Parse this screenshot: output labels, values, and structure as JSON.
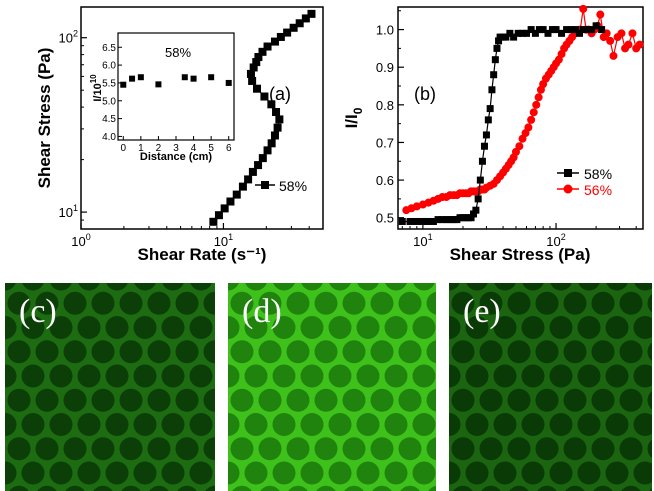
{
  "colors": {
    "black_series": "#000000",
    "red_series": "#ff0000",
    "micro_bg_c": "#1d6c11",
    "micro_cell_c": "#0b3f07",
    "micro_bg_d": "#3fc11b",
    "micro_cell_d": "#20830e",
    "micro_bg_e": "#1b6510",
    "micro_cell_e": "#0a3a06"
  },
  "chart_data": [
    {
      "panel": "(a)",
      "type": "scatter",
      "xlabel": "Shear Rate (s⁻¹)",
      "ylabel": "Shear Stress (Pa)",
      "x_scale": "log",
      "y_scale": "log",
      "xlim": [
        1,
        50
      ],
      "ylim": [
        8,
        150
      ],
      "x_ticks": [
        {
          "value": 1,
          "label": "10",
          "exp": "0"
        },
        {
          "value": 10,
          "label": "10",
          "exp": "1"
        }
      ],
      "y_ticks": [
        {
          "value": 10,
          "label": "10",
          "exp": "1"
        },
        {
          "value": 100,
          "label": "10",
          "exp": "2"
        }
      ],
      "legend": {
        "placement": "lower-right",
        "entries": [
          "58%"
        ]
      },
      "series": [
        {
          "name": "58%",
          "color": "#000000",
          "marker": "square",
          "points": [
            [
              8.5,
              8.8
            ],
            [
              9.3,
              9.6
            ],
            [
              10.2,
              10.5
            ],
            [
              11.2,
              11.5
            ],
            [
              12.4,
              12.6
            ],
            [
              13.7,
              14.0
            ],
            [
              14.9,
              15.4
            ],
            [
              16.1,
              17.0
            ],
            [
              17.5,
              18.6
            ],
            [
              18.9,
              20.4
            ],
            [
              20.4,
              22.6
            ],
            [
              21.8,
              24.8
            ],
            [
              23.0,
              27.5
            ],
            [
              24.0,
              30.5
            ],
            [
              24.7,
              34.0
            ],
            [
              23.4,
              37.5
            ],
            [
              21.7,
              41.5
            ],
            [
              19.4,
              46.0
            ],
            [
              17.2,
              51.0
            ],
            [
              15.9,
              56.5
            ],
            [
              15.6,
              62.0
            ],
            [
              16.3,
              67.5
            ],
            [
              17.0,
              72.5
            ],
            [
              17.6,
              77.5
            ],
            [
              18.8,
              83.0
            ],
            [
              20.4,
              89.0
            ],
            [
              23.0,
              95.0
            ],
            [
              25.3,
              101.0
            ],
            [
              28.0,
              107.0
            ],
            [
              31.1,
              114.0
            ],
            [
              34.3,
              121.0
            ],
            [
              37.9,
              129.0
            ],
            [
              41.5,
              137.0
            ]
          ]
        }
      ],
      "inset": {
        "type": "scatter",
        "annotation": "58%",
        "xlabel": "Distance (cm)",
        "ylabel": "I/10",
        "ylabel_exp": "10",
        "xlim": [
          -0.3,
          6.3
        ],
        "ylim": [
          3.9,
          6.9
        ],
        "x_ticks": [
          0,
          1,
          2,
          3,
          4,
          5,
          6
        ],
        "y_ticks": [
          4.0,
          4.5,
          5.0,
          5.5,
          6.0,
          6.5
        ],
        "y_tick_labels": [
          "4.0",
          "4.5",
          "5.0",
          "5.5",
          "6.0",
          "6.5"
        ],
        "points": [
          [
            0,
            5.45
          ],
          [
            0.5,
            5.62
          ],
          [
            1,
            5.66
          ],
          [
            2,
            5.46
          ],
          [
            3.5,
            5.66
          ],
          [
            4,
            5.62
          ],
          [
            5,
            5.66
          ],
          [
            6,
            5.5
          ]
        ]
      }
    },
    {
      "panel": "(b)",
      "type": "line",
      "xlabel": "Shear Stress (Pa)",
      "ylabel": "I/I",
      "ylabel_sub": "0",
      "x_scale": "log",
      "y_scale": "linear",
      "xlim": [
        6.5,
        450
      ],
      "ylim": [
        0.47,
        1.06
      ],
      "x_ticks": [
        {
          "value": 10,
          "label": "10",
          "exp": "1"
        },
        {
          "value": 100,
          "label": "10",
          "exp": "2"
        }
      ],
      "y_ticks": [
        0.5,
        0.6,
        0.7,
        0.8,
        0.9,
        1.0
      ],
      "y_tick_labels": [
        "0.5",
        "0.6",
        "0.7",
        "0.8",
        "0.9",
        "1.0"
      ],
      "legend": {
        "placement": "lower-right",
        "entries": [
          "58%",
          "56%"
        ]
      },
      "series": [
        {
          "name": "58%",
          "color": "#000000",
          "marker": "square",
          "points": [
            [
              7.0,
              0.49
            ],
            [
              8.0,
              0.49
            ],
            [
              9.0,
              0.49
            ],
            [
              10.0,
              0.49
            ],
            [
              11.0,
              0.49
            ],
            [
              12.0,
              0.49
            ],
            [
              13.0,
              0.495
            ],
            [
              14.0,
              0.495
            ],
            [
              15.0,
              0.495
            ],
            [
              16.0,
              0.495
            ],
            [
              17.0,
              0.495
            ],
            [
              18.0,
              0.495
            ],
            [
              19.0,
              0.5
            ],
            [
              20.0,
              0.5
            ],
            [
              21.0,
              0.5
            ],
            [
              22.0,
              0.5
            ],
            [
              23.0,
              0.5
            ],
            [
              24.0,
              0.51
            ],
            [
              25.0,
              0.52
            ],
            [
              26.0,
              0.55
            ],
            [
              27.0,
              0.6
            ],
            [
              28.0,
              0.65
            ],
            [
              29.0,
              0.69
            ],
            [
              30.0,
              0.72
            ],
            [
              31.0,
              0.76
            ],
            [
              32.0,
              0.79
            ],
            [
              33.0,
              0.84
            ],
            [
              34.0,
              0.88
            ],
            [
              35.0,
              0.92
            ],
            [
              36.0,
              0.95
            ],
            [
              37.0,
              0.97
            ],
            [
              38.0,
              0.98
            ],
            [
              40.0,
              0.98
            ],
            [
              42.0,
              0.98
            ],
            [
              45.0,
              0.99
            ],
            [
              48.0,
              0.98
            ],
            [
              52.0,
              0.99
            ],
            [
              56.0,
              0.99
            ],
            [
              60.0,
              0.99
            ],
            [
              65.0,
              1.0
            ],
            [
              70.0,
              0.99
            ],
            [
              75.0,
              1.0
            ],
            [
              80.0,
              1.0
            ],
            [
              87.0,
              0.99
            ],
            [
              94.0,
              1.0
            ],
            [
              100.0,
              1.0
            ],
            [
              110.0,
              0.99
            ],
            [
              120.0,
              1.0
            ],
            [
              130.0,
              1.0
            ],
            [
              140.0,
              1.0
            ],
            [
              150.0,
              0.99
            ],
            [
              160.0,
              1.0
            ],
            [
              170.0,
              1.0
            ],
            [
              185.0,
              1.0
            ],
            [
              200.0,
              1.01
            ],
            [
              220.0,
              1.0
            ]
          ]
        },
        {
          "name": "56%",
          "color": "#ff0000",
          "marker": "circle",
          "points": [
            [
              7.5,
              0.52
            ],
            [
              8.2,
              0.525
            ],
            [
              9.0,
              0.53
            ],
            [
              10.0,
              0.535
            ],
            [
              11.0,
              0.54
            ],
            [
              12.0,
              0.545
            ],
            [
              13.0,
              0.55
            ],
            [
              14.0,
              0.555
            ],
            [
              15.0,
              0.555
            ],
            [
              16.0,
              0.56
            ],
            [
              17.0,
              0.56
            ],
            [
              18.0,
              0.56
            ],
            [
              19.0,
              0.565
            ],
            [
              20.0,
              0.565
            ],
            [
              21.0,
              0.565
            ],
            [
              22.0,
              0.565
            ],
            [
              23.0,
              0.57
            ],
            [
              24.0,
              0.57
            ],
            [
              25.0,
              0.57
            ],
            [
              26.0,
              0.57
            ],
            [
              27.0,
              0.575
            ],
            [
              28.0,
              0.575
            ],
            [
              29.0,
              0.575
            ],
            [
              30.0,
              0.58
            ],
            [
              32.0,
              0.585
            ],
            [
              34.0,
              0.59
            ],
            [
              36.0,
              0.6
            ],
            [
              38.0,
              0.61
            ],
            [
              40.0,
              0.62
            ],
            [
              42.0,
              0.63
            ],
            [
              44.0,
              0.64
            ],
            [
              46.0,
              0.65
            ],
            [
              48.0,
              0.66
            ],
            [
              50.0,
              0.675
            ],
            [
              53.0,
              0.69
            ],
            [
              56.0,
              0.71
            ],
            [
              59.0,
              0.725
            ],
            [
              62.0,
              0.74
            ],
            [
              65.0,
              0.76
            ],
            [
              68.0,
              0.78
            ],
            [
              71.0,
              0.8
            ],
            [
              74.0,
              0.82
            ],
            [
              77.0,
              0.84
            ],
            [
              80.0,
              0.855
            ],
            [
              84.0,
              0.87
            ],
            [
              88.0,
              0.88
            ],
            [
              92.0,
              0.89
            ],
            [
              96.0,
              0.9
            ],
            [
              100.0,
              0.91
            ],
            [
              105.0,
              0.92
            ],
            [
              110.0,
              0.935
            ],
            [
              115.0,
              0.95
            ],
            [
              120.0,
              0.96
            ],
            [
              126.0,
              0.97
            ],
            [
              132.0,
              0.98
            ],
            [
              138.0,
              0.99
            ],
            [
              145.0,
              0.995
            ],
            [
              152.0,
              1.0
            ],
            [
              160.0,
              1.055
            ],
            [
              168.0,
              1.0
            ],
            [
              176.0,
              1.0
            ],
            [
              185.0,
              0.99
            ],
            [
              195.0,
              1.0
            ],
            [
              205.0,
              1.01
            ],
            [
              215.0,
              1.04
            ],
            [
              228.0,
              0.98
            ],
            [
              240.0,
              0.99
            ],
            [
              255.0,
              0.97
            ],
            [
              270.0,
              0.93
            ],
            [
              290.0,
              0.98
            ],
            [
              310.0,
              0.99
            ],
            [
              330.0,
              0.95
            ],
            [
              350.0,
              0.96
            ],
            [
              375.0,
              0.99
            ],
            [
              400.0,
              0.95
            ],
            [
              425.0,
              0.96
            ]
          ]
        }
      ]
    }
  ],
  "micrographs": [
    {
      "label": "(c)",
      "bg": "#1d6c11",
      "cell": "#0b3f07"
    },
    {
      "label": "(d)",
      "bg": "#3fc11b",
      "cell": "#20830e"
    },
    {
      "label": "(e)",
      "bg": "#1b6510",
      "cell": "#0a3a06"
    }
  ]
}
